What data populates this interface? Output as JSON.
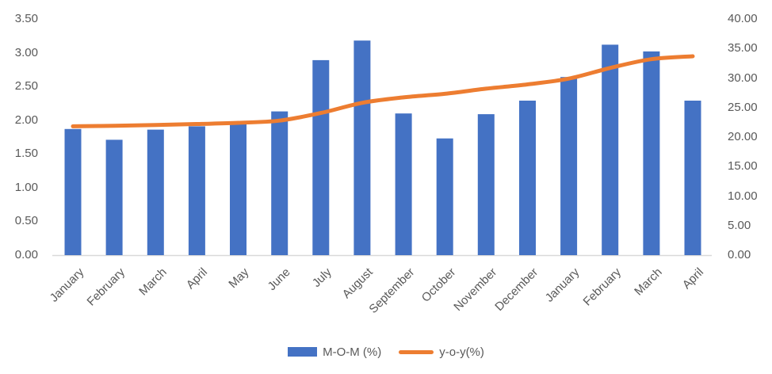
{
  "chart_data": {
    "type": "bar",
    "subtype": "combo-bar-line-dual-axis",
    "title": "",
    "categories": [
      "January",
      "February",
      "March",
      "April",
      "May",
      "June",
      "July",
      "August",
      "September",
      "October",
      "November",
      "December",
      "January",
      "February",
      "March",
      "April"
    ],
    "series": [
      {
        "name": "M-O-M (%)",
        "type": "bar",
        "axis": "left",
        "color": "#4472C4",
        "values": [
          1.87,
          1.71,
          1.86,
          1.91,
          1.94,
          2.13,
          2.89,
          3.18,
          2.1,
          1.73,
          2.09,
          2.29,
          2.64,
          3.12,
          3.02,
          2.29
        ]
      },
      {
        "name": "y-o-y(%)",
        "type": "line",
        "axis": "right",
        "smooth": true,
        "color": "#ED7D31",
        "values": [
          21.82,
          21.91,
          22.04,
          22.22,
          22.41,
          22.79,
          24.08,
          25.8,
          26.72,
          27.33,
          28.2,
          28.92,
          29.9,
          31.7,
          33.2,
          33.69
        ]
      }
    ],
    "left_axis": {
      "min": 0,
      "max": 3.5,
      "step": 0.5,
      "tick_labels": [
        "0.00",
        "0.50",
        "1.00",
        "1.50",
        "2.00",
        "2.50",
        "3.00",
        "3.50"
      ]
    },
    "right_axis": {
      "min": 0,
      "max": 40,
      "step": 5,
      "tick_labels": [
        "0.00",
        "5.00",
        "10.00",
        "15.00",
        "20.00",
        "25.00",
        "30.00",
        "35.00",
        "40.00"
      ]
    },
    "legend_position": "bottom",
    "grid": false,
    "colors": {
      "axis_text": "#595959",
      "axis_line": "#D9D9D9",
      "background": "#FFFFFF"
    }
  }
}
